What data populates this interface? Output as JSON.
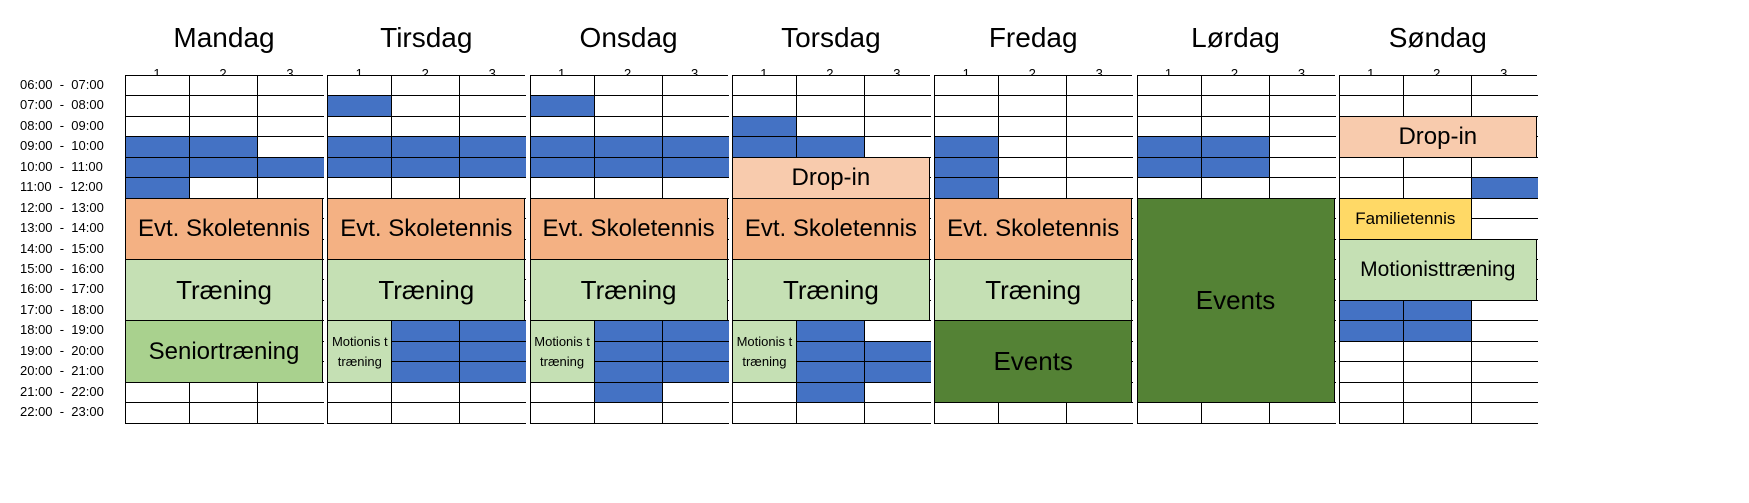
{
  "times": [
    "06:00  -  07:00",
    "07:00  -  08:00",
    "08:00  -  09:00",
    "09:00  -  10:00",
    "10:00  -  11:00",
    "11:00  -  12:00",
    "12:00  -  13:00",
    "13:00  -  14:00",
    "14:00  -  15:00",
    "15:00  -  16:00",
    "16:00  -  17:00",
    "17:00  -  18:00",
    "18:00  -  19:00",
    "19:00  -  20:00",
    "20:00  -  21:00",
    "21:00  -  22:00",
    "22:00  -  23:00"
  ],
  "courts": [
    "1",
    "2",
    "3"
  ],
  "colors": {
    "blue": "#4472c4",
    "salmon": "#f4b183",
    "lightsalmon": "#f8cbad",
    "lightgreen": "#c5e0b4",
    "green": "#a9d18e",
    "darkgreen": "#548235",
    "yellow": "#ffd966"
  },
  "days": [
    {
      "name": "Mandag",
      "booked": [
        [
          3,
          0
        ],
        [
          3,
          1
        ],
        [
          4,
          0
        ],
        [
          4,
          1
        ],
        [
          4,
          2
        ],
        [
          5,
          0
        ]
      ],
      "blocks": [
        {
          "start": 6,
          "end": 9,
          "c0": 0,
          "c1": 3,
          "label": "Evt. Skoletennis",
          "color": "#f4b183",
          "size": 24
        },
        {
          "start": 9,
          "end": 12,
          "c0": 0,
          "c1": 3,
          "label": "Træning",
          "color": "#c5e0b4",
          "size": 26
        },
        {
          "start": 12,
          "end": 15,
          "c0": 0,
          "c1": 3,
          "label": "Seniortræning",
          "color": "#a9d18e",
          "size": 24
        }
      ]
    },
    {
      "name": "Tirsdag",
      "booked": [
        [
          1,
          0
        ],
        [
          3,
          0
        ],
        [
          3,
          1
        ],
        [
          3,
          2
        ],
        [
          4,
          0
        ],
        [
          4,
          1
        ],
        [
          4,
          2
        ],
        [
          12,
          1
        ],
        [
          12,
          2
        ],
        [
          13,
          1
        ],
        [
          13,
          2
        ],
        [
          14,
          1
        ],
        [
          14,
          2
        ]
      ],
      "blocks": [
        {
          "start": 6,
          "end": 9,
          "c0": 0,
          "c1": 3,
          "label": "Evt. Skoletennis",
          "color": "#f4b183",
          "size": 24
        },
        {
          "start": 9,
          "end": 12,
          "c0": 0,
          "c1": 3,
          "label": "Træning",
          "color": "#c5e0b4",
          "size": 26
        },
        {
          "start": 12,
          "end": 15,
          "c0": 0,
          "c1": 1,
          "label": "Motionis ttræning",
          "color": "#c5e0b4",
          "size": 13
        }
      ]
    },
    {
      "name": "Onsdag",
      "booked": [
        [
          1,
          0
        ],
        [
          3,
          0
        ],
        [
          3,
          1
        ],
        [
          3,
          2
        ],
        [
          4,
          0
        ],
        [
          4,
          1
        ],
        [
          4,
          2
        ],
        [
          12,
          1
        ],
        [
          12,
          2
        ],
        [
          13,
          1
        ],
        [
          13,
          2
        ],
        [
          14,
          1
        ],
        [
          14,
          2
        ],
        [
          15,
          1
        ]
      ],
      "blocks": [
        {
          "start": 6,
          "end": 9,
          "c0": 0,
          "c1": 3,
          "label": "Evt. Skoletennis",
          "color": "#f4b183",
          "size": 24
        },
        {
          "start": 9,
          "end": 12,
          "c0": 0,
          "c1": 3,
          "label": "Træning",
          "color": "#c5e0b4",
          "size": 26
        },
        {
          "start": 12,
          "end": 15,
          "c0": 0,
          "c1": 1,
          "label": "Motionis ttræning",
          "color": "#c5e0b4",
          "size": 13
        }
      ]
    },
    {
      "name": "Torsdag",
      "booked": [
        [
          2,
          0
        ],
        [
          3,
          0
        ],
        [
          3,
          1
        ],
        [
          12,
          1
        ],
        [
          13,
          1
        ],
        [
          13,
          2
        ],
        [
          14,
          1
        ],
        [
          14,
          2
        ],
        [
          15,
          1
        ]
      ],
      "blocks": [
        {
          "start": 4,
          "end": 6,
          "c0": 0,
          "c1": 3,
          "label": "Drop-in",
          "color": "#f8cbad",
          "size": 24
        },
        {
          "start": 6,
          "end": 9,
          "c0": 0,
          "c1": 3,
          "label": "Evt. Skoletennis",
          "color": "#f4b183",
          "size": 24
        },
        {
          "start": 9,
          "end": 12,
          "c0": 0,
          "c1": 3,
          "label": "Træning",
          "color": "#c5e0b4",
          "size": 26
        },
        {
          "start": 12,
          "end": 15,
          "c0": 0,
          "c1": 1,
          "label": "Motionis ttræning",
          "color": "#c5e0b4",
          "size": 13
        }
      ]
    },
    {
      "name": "Fredag",
      "booked": [
        [
          3,
          0
        ],
        [
          4,
          0
        ],
        [
          5,
          0
        ]
      ],
      "blocks": [
        {
          "start": 6,
          "end": 9,
          "c0": 0,
          "c1": 3,
          "label": "Evt. Skoletennis",
          "color": "#f4b183",
          "size": 24
        },
        {
          "start": 9,
          "end": 12,
          "c0": 0,
          "c1": 3,
          "label": "Træning",
          "color": "#c5e0b4",
          "size": 26
        },
        {
          "start": 12,
          "end": 16,
          "c0": 0,
          "c1": 3,
          "label": "Events",
          "color": "#548235",
          "size": 26
        }
      ]
    },
    {
      "name": "Lørdag",
      "booked": [
        [
          3,
          0
        ],
        [
          3,
          1
        ],
        [
          4,
          0
        ],
        [
          4,
          1
        ]
      ],
      "blocks": [
        {
          "start": 6,
          "end": 16,
          "c0": 0,
          "c1": 3,
          "label": "Events",
          "color": "#548235",
          "size": 26
        }
      ]
    },
    {
      "name": "Søndag",
      "booked": [
        [
          5,
          2
        ],
        [
          11,
          0
        ],
        [
          11,
          1
        ],
        [
          12,
          0
        ],
        [
          12,
          1
        ]
      ],
      "blocks": [
        {
          "start": 2,
          "end": 4,
          "c0": 0,
          "c1": 3,
          "label": "Drop-in",
          "color": "#f8cbad",
          "size": 24
        },
        {
          "start": 6,
          "end": 8,
          "c0": 0,
          "c1": 2,
          "label": "Familietennis",
          "color": "#ffd966",
          "size": 17
        },
        {
          "start": 8,
          "end": 11,
          "c0": 0,
          "c1": 3,
          "label": "Motionisttræning",
          "color": "#c5e0b4",
          "size": 21
        }
      ]
    }
  ]
}
